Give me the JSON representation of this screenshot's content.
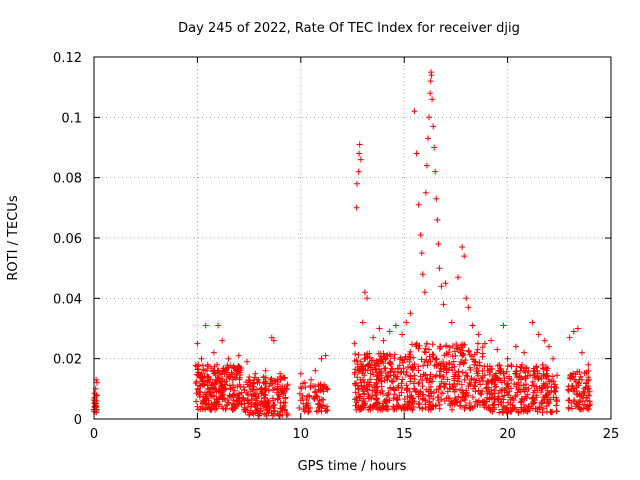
{
  "chart_data": {
    "type": "scatter",
    "title": "Day 245 of 2022, Rate Of TEC Index for receiver djig",
    "xlabel": "GPS time / hours",
    "ylabel": "ROTI / TECUs",
    "xlim": [
      0,
      25
    ],
    "ylim": [
      0,
      0.12
    ],
    "x_ticks": [
      0,
      5,
      10,
      15,
      20,
      25
    ],
    "x_tick_labels": [
      "0",
      "5",
      "10",
      "15",
      "20",
      "25"
    ],
    "y_ticks": [
      0,
      0.02,
      0.04,
      0.06,
      0.08,
      0.1,
      0.12
    ],
    "y_tick_labels": [
      "0",
      "0.02",
      "0.04",
      "0.06",
      "0.08",
      "0.1",
      "0.12"
    ],
    "grid": true,
    "marker": "+",
    "color": "#ff0000",
    "series": [
      {
        "name": "ROTI",
        "points": [
          [
            0.0,
            0.003
          ],
          [
            0.05,
            0.005
          ],
          [
            0.1,
            0.008
          ],
          [
            0.15,
            0.012
          ],
          [
            0.08,
            0.01
          ],
          [
            0.12,
            0.006
          ],
          [
            0.02,
            0.004
          ],
          [
            0.1,
            0.013
          ],
          [
            5.0,
            0.025
          ],
          [
            5.2,
            0.02
          ],
          [
            5.4,
            0.031
          ],
          [
            5.5,
            0.018
          ],
          [
            5.8,
            0.022
          ],
          [
            6.0,
            0.031
          ],
          [
            6.2,
            0.026
          ],
          [
            6.5,
            0.02
          ],
          [
            6.8,
            0.017
          ],
          [
            7.0,
            0.021
          ],
          [
            7.4,
            0.019
          ],
          [
            7.8,
            0.015
          ],
          [
            8.0,
            0.012
          ],
          [
            8.3,
            0.016
          ],
          [
            8.6,
            0.027
          ],
          [
            8.7,
            0.026
          ],
          [
            9.0,
            0.015
          ],
          [
            9.3,
            0.01
          ],
          [
            10.0,
            0.015
          ],
          [
            10.2,
            0.012
          ],
          [
            10.5,
            0.013
          ],
          [
            10.7,
            0.016
          ],
          [
            11.0,
            0.02
          ],
          [
            11.2,
            0.021
          ],
          [
            12.6,
            0.025
          ],
          [
            12.7,
            0.07
          ],
          [
            12.72,
            0.078
          ],
          [
            12.8,
            0.082
          ],
          [
            12.82,
            0.088
          ],
          [
            12.85,
            0.091
          ],
          [
            12.9,
            0.086
          ],
          [
            13.0,
            0.032
          ],
          [
            13.1,
            0.042
          ],
          [
            13.2,
            0.04
          ],
          [
            13.5,
            0.027
          ],
          [
            13.8,
            0.03
          ],
          [
            14.0,
            0.026
          ],
          [
            14.3,
            0.029
          ],
          [
            14.6,
            0.031
          ],
          [
            14.9,
            0.028
          ],
          [
            15.1,
            0.032
          ],
          [
            15.3,
            0.035
          ],
          [
            15.5,
            0.102
          ],
          [
            15.6,
            0.088
          ],
          [
            15.7,
            0.071
          ],
          [
            15.8,
            0.061
          ],
          [
            15.85,
            0.055
          ],
          [
            15.9,
            0.048
          ],
          [
            16.0,
            0.042
          ],
          [
            16.05,
            0.075
          ],
          [
            16.1,
            0.084
          ],
          [
            16.15,
            0.093
          ],
          [
            16.2,
            0.1
          ],
          [
            16.25,
            0.108
          ],
          [
            16.28,
            0.112
          ],
          [
            16.3,
            0.115
          ],
          [
            16.32,
            0.114
          ],
          [
            16.35,
            0.106
          ],
          [
            16.4,
            0.097
          ],
          [
            16.45,
            0.09
          ],
          [
            16.5,
            0.082
          ],
          [
            16.55,
            0.073
          ],
          [
            16.6,
            0.066
          ],
          [
            16.65,
            0.058
          ],
          [
            16.7,
            0.05
          ],
          [
            16.8,
            0.044
          ],
          [
            16.9,
            0.038
          ],
          [
            17.0,
            0.045
          ],
          [
            17.3,
            0.032
          ],
          [
            17.6,
            0.047
          ],
          [
            17.8,
            0.057
          ],
          [
            17.9,
            0.054
          ],
          [
            18.0,
            0.04
          ],
          [
            18.1,
            0.037
          ],
          [
            18.3,
            0.031
          ],
          [
            18.6,
            0.028
          ],
          [
            18.9,
            0.025
          ],
          [
            19.2,
            0.026
          ],
          [
            19.5,
            0.023
          ],
          [
            19.8,
            0.031
          ],
          [
            20.0,
            0.02
          ],
          [
            20.4,
            0.024
          ],
          [
            20.8,
            0.022
          ],
          [
            21.2,
            0.032
          ],
          [
            21.5,
            0.028
          ],
          [
            21.8,
            0.026
          ],
          [
            22.0,
            0.024
          ],
          [
            22.2,
            0.02
          ],
          [
            23.0,
            0.027
          ],
          [
            23.2,
            0.029
          ],
          [
            23.4,
            0.03
          ],
          [
            23.6,
            0.022
          ],
          [
            23.9,
            0.018
          ]
        ],
        "clusters": [
          {
            "x_range": [
              0.0,
              0.15
            ],
            "y_range": [
              0.002,
              0.01
            ],
            "count": 20
          },
          {
            "x_range": [
              4.9,
              7.2
            ],
            "y_range": [
              0.003,
              0.018
            ],
            "count": 260
          },
          {
            "x_range": [
              7.2,
              9.4
            ],
            "y_range": [
              0.001,
              0.014
            ],
            "count": 200
          },
          {
            "x_range": [
              9.9,
              11.3
            ],
            "y_range": [
              0.002,
              0.012
            ],
            "count": 70
          },
          {
            "x_range": [
              12.6,
              15.0
            ],
            "y_range": [
              0.003,
              0.022
            ],
            "count": 280
          },
          {
            "x_range": [
              15.0,
              18.8
            ],
            "y_range": [
              0.003,
              0.025
            ],
            "count": 360
          },
          {
            "x_range": [
              18.8,
              22.4
            ],
            "y_range": [
              0.002,
              0.018
            ],
            "count": 320
          },
          {
            "x_range": [
              22.9,
              24.0
            ],
            "y_range": [
              0.003,
              0.016
            ],
            "count": 90
          }
        ]
      }
    ]
  }
}
